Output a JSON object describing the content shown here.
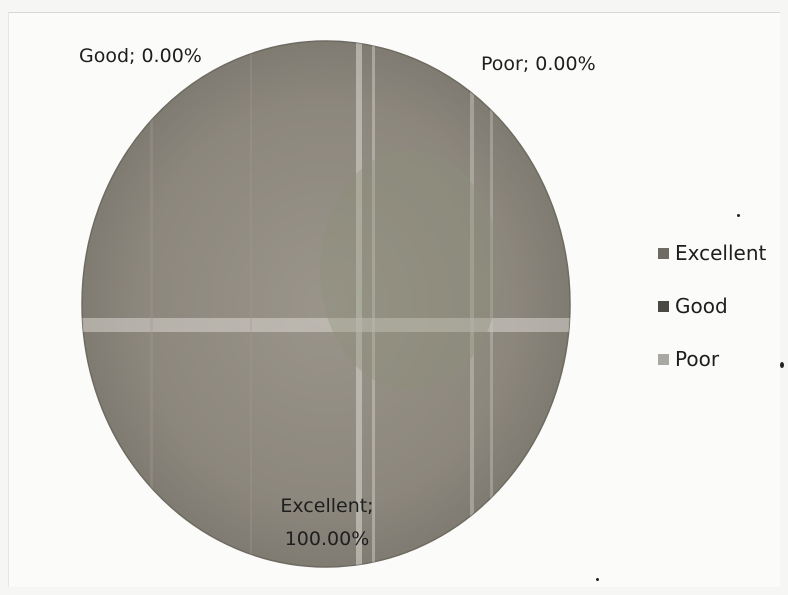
{
  "chart_data": {
    "type": "pie",
    "categories": [
      "Excellent",
      "Good",
      "Poor"
    ],
    "values": [
      100.0,
      0.0,
      0.0
    ],
    "unit": "%",
    "data_labels": [
      {
        "category": "Excellent",
        "text_line1": "Excellent;",
        "text_line2": "100.00%"
      },
      {
        "category": "Good",
        "text": "Good; 0.00%"
      },
      {
        "category": "Poor",
        "text": "Poor; 0.00%"
      }
    ],
    "legend": {
      "placement": "right",
      "items": [
        {
          "label": "Excellent",
          "color": "#6e6b63"
        },
        {
          "label": "Good",
          "color": "#4a4944"
        },
        {
          "label": "Poor",
          "color": "#a9a8a3"
        }
      ]
    },
    "colors": {
      "pie_fill": "#8f8a80",
      "pie_edge": "#6f6b63"
    }
  }
}
